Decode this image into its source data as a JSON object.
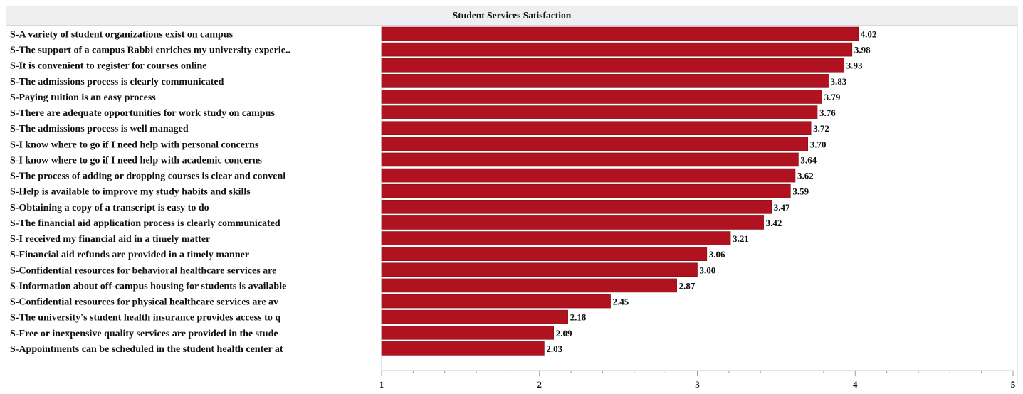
{
  "chart_data": {
    "type": "bar",
    "orientation": "horizontal",
    "title": "Student Services Satisfaction",
    "xlabel": "",
    "ylabel": "",
    "xlim": [
      1,
      5
    ],
    "xticks": [
      1,
      2,
      3,
      4,
      5
    ],
    "grid": false,
    "bar_color": "#b0121f",
    "categories": [
      "S-A variety of student organizations exist on campus",
      "S-The support of a campus Rabbi enriches my university experie..",
      "S-It is convenient to register for courses online",
      "S-The admissions process is clearly communicated",
      "S-Paying tuition is an easy process",
      "S-There are adequate opportunities for work study on campus",
      "S-The admissions process is well managed",
      "S-I know where to go if I need help with personal concerns",
      "S-I know where to go if I need help with academic concerns",
      "S-The process of adding or dropping courses is clear and conveni",
      "S-Help is available to improve my study habits and skills",
      "S-Obtaining a copy of a transcript is easy to do",
      "S-The financial aid application process is clearly communicated",
      "S-I received my financial aid in a timely matter",
      "S-Financial aid refunds are provided in a timely manner",
      "S-Confidential resources for behavioral healthcare services are",
      "S-Information about off-campus housing for students is available",
      "S-Confidential resources for physical healthcare services are av",
      "S-The university's student health insurance provides access to q",
      "S-Free or inexpensive quality services are provided in the stude",
      "S-Appointments can be scheduled in the student health center at"
    ],
    "values": [
      4.02,
      3.98,
      3.93,
      3.83,
      3.79,
      3.76,
      3.72,
      3.7,
      3.64,
      3.62,
      3.59,
      3.47,
      3.42,
      3.21,
      3.06,
      3.0,
      2.87,
      2.45,
      2.18,
      2.09,
      2.03
    ],
    "value_labels": [
      "4.02",
      "3.98",
      "3.93",
      "3.83",
      "3.79",
      "3.76",
      "3.72",
      "3.70",
      "3.64",
      "3.62",
      "3.59",
      "3.47",
      "3.42",
      "3.21",
      "3.06",
      "3.00",
      "2.87",
      "2.45",
      "2.18",
      "2.09",
      "2.03"
    ]
  }
}
